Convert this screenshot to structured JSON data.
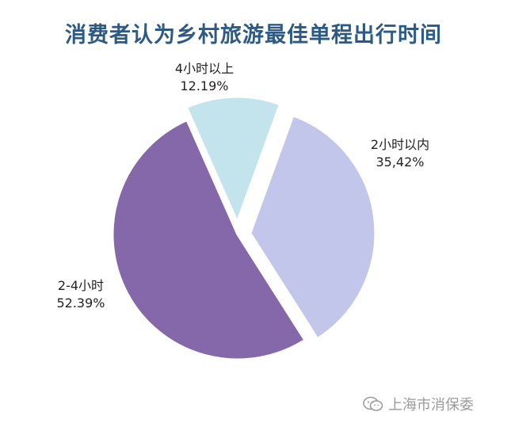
{
  "chart_data": {
    "type": "pie",
    "title": "消费者认为乡村旅游最佳单程出行时间",
    "slices": [
      {
        "label": "2小时以内",
        "value_text": "35,42%",
        "value": 35.42,
        "color": "#c1c6ea",
        "explode": true
      },
      {
        "label": "2-4小时",
        "value_text": "52.39%",
        "value": 52.39,
        "color": "#8468a9",
        "explode": false
      },
      {
        "label": "4小时以上",
        "value_text": "12.19%",
        "value": 12.19,
        "color": "#c3e4ec",
        "explode": true
      }
    ],
    "legend": "none",
    "labels_placement": "outside"
  },
  "watermark": {
    "text": "上海市消保委",
    "icon": "wechat-icon"
  }
}
